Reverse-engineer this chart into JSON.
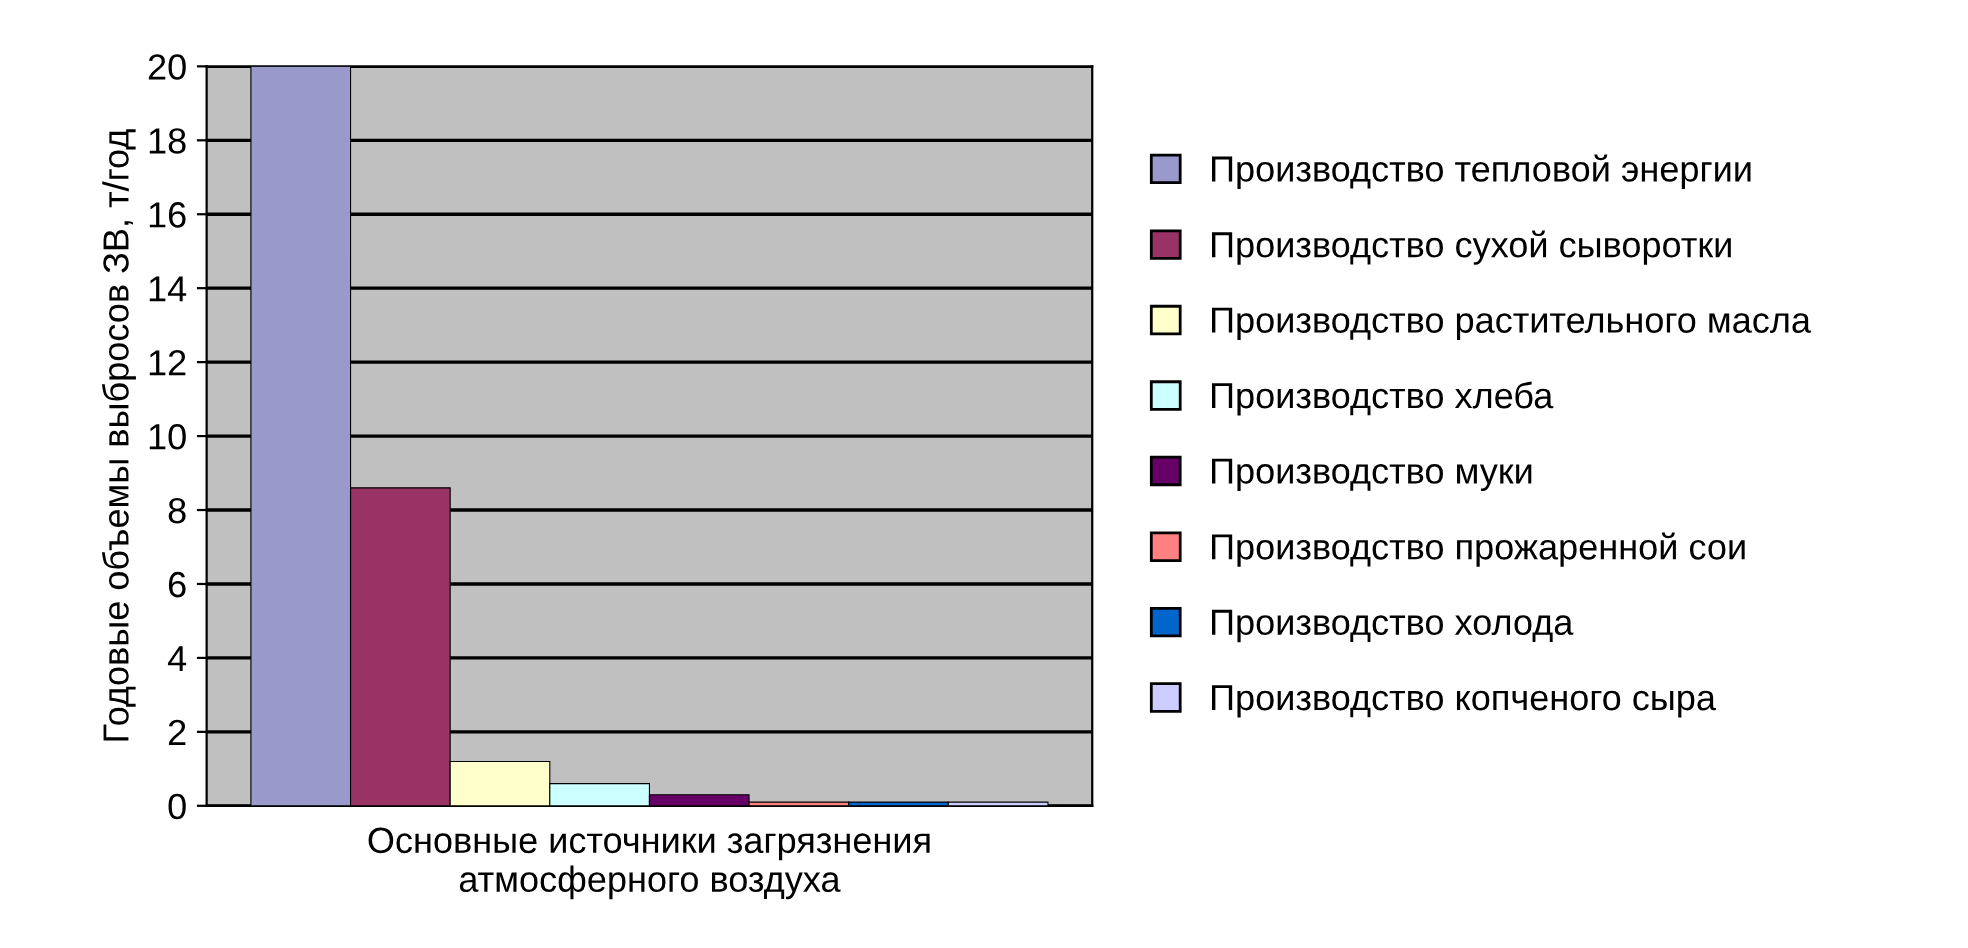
{
  "chart_data": {
    "type": "bar",
    "xlabel": "Основные источники загрязнения\nатмосферного воздуха",
    "ylabel": "Годовые объемы выбросов ЗВ, т/год",
    "categories": [
      null
    ],
    "series": [
      {
        "name": "Производство тепловой энергии",
        "color": "#9999cc",
        "values": [
          20
        ]
      },
      {
        "name": "Производство сухой сыворотки",
        "color": "#993366",
        "values": [
          8.6
        ]
      },
      {
        "name": "Производство растительного масла",
        "color": "#ffffcc",
        "values": [
          1.2
        ]
      },
      {
        "name": "Производство хлеба",
        "color": "#ccffff",
        "values": [
          0.6
        ]
      },
      {
        "name": "Производство муки",
        "color": "#660066",
        "values": [
          0.3
        ]
      },
      {
        "name": "Производство прожаренной сои",
        "color": "#ff8080",
        "values": [
          0.1
        ]
      },
      {
        "name": "Производство холода",
        "color": "#0066cc",
        "values": [
          0.1
        ]
      },
      {
        "name": "Производство копченого сыра",
        "color": "#ccccff",
        "values": [
          0.1
        ]
      }
    ],
    "ylim": [
      0,
      20
    ],
    "yticks": [
      0,
      2,
      4,
      6,
      8,
      10,
      12,
      14,
      16,
      18,
      20
    ],
    "grid": "y",
    "legend": "right"
  }
}
